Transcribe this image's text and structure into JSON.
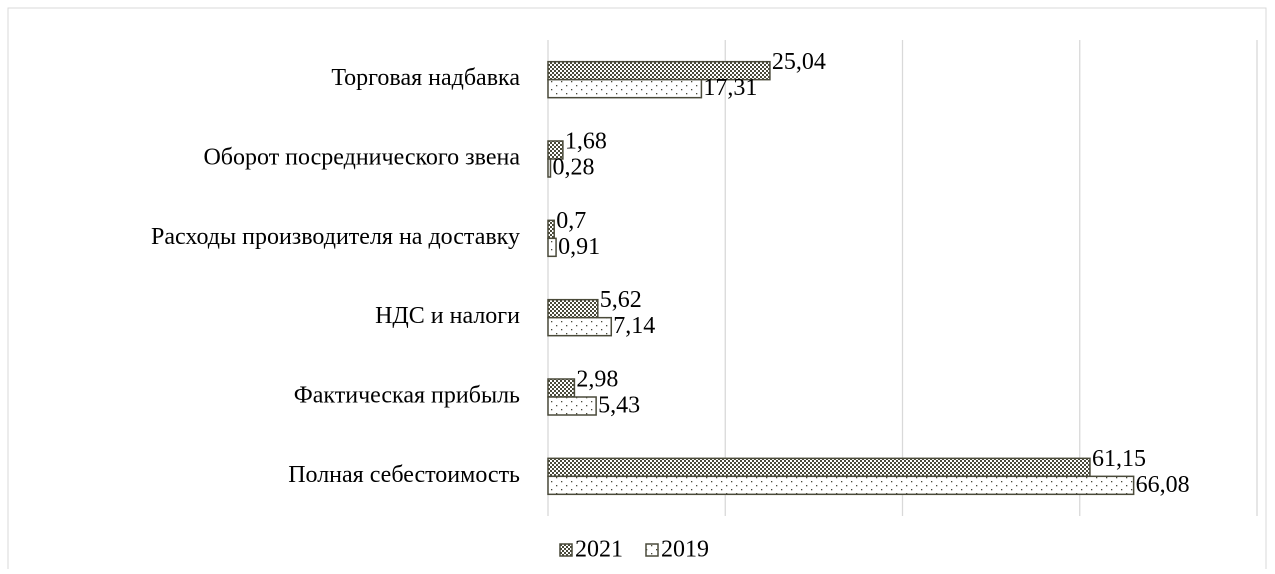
{
  "chart_data": {
    "type": "hbar",
    "categories": [
      "Торговая надбавка",
      "Оборот посреднического звена",
      "Расходы производителя на доставку",
      "НДС и налоги",
      "Фактическая прибыль",
      "Полная себестоимость"
    ],
    "series": [
      {
        "name": "2021",
        "color": "#4a4a3a",
        "values": [
          25.04,
          1.68,
          0.7,
          5.62,
          2.98,
          61.15
        ],
        "value_labels": [
          "25,04",
          "1,68",
          "0,7",
          "5,62",
          "2,98",
          "61,15"
        ]
      },
      {
        "name": "2019",
        "color": "#4a4a3a",
        "values": [
          17.31,
          0.28,
          0.91,
          7.14,
          5.43,
          66.08
        ],
        "value_labels": [
          "17,31",
          "0,28",
          "0,91",
          "7,14",
          "5,43",
          "66,08"
        ]
      }
    ],
    "xlim": [
      0,
      80
    ],
    "xticks": [
      0,
      20,
      40,
      60,
      80
    ],
    "grid": true,
    "legend": "bottom"
  }
}
